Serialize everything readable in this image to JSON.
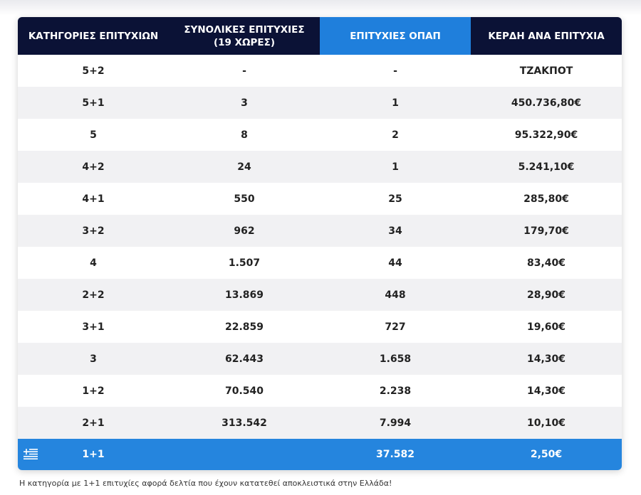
{
  "header": {
    "col1": "ΚΑΤΗΓΟΡΙΕΣ ΕΠΙΤΥΧΙΩΝ",
    "col2_line1": "ΣΥΝΟΛΙΚΕΣ ΕΠΙΤΥΧΙΕΣ",
    "col2_line2": "(19 ΧΩΡΕΣ)",
    "col3": "ΕΠΙΤΥΧΙΕΣ ΟΠΑΠ",
    "col4": "ΚΕΡΔΗ ΑΝΑ ΕΠΙΤΥΧΙΑ"
  },
  "rows": [
    {
      "category": "5+2",
      "total": "-",
      "opap": "-",
      "prize": "ΤΖΑΚΠΟΤ"
    },
    {
      "category": "5+1",
      "total": "3",
      "opap": "1",
      "prize": "450.736,80€"
    },
    {
      "category": "5",
      "total": "8",
      "opap": "2",
      "prize": "95.322,90€"
    },
    {
      "category": "4+2",
      "total": "24",
      "opap": "1",
      "prize": "5.241,10€"
    },
    {
      "category": "4+1",
      "total": "550",
      "opap": "25",
      "prize": "285,80€"
    },
    {
      "category": "3+2",
      "total": "962",
      "opap": "34",
      "prize": "179,70€"
    },
    {
      "category": "4",
      "total": "1.507",
      "opap": "44",
      "prize": "83,40€"
    },
    {
      "category": "2+2",
      "total": "13.869",
      "opap": "448",
      "prize": "28,90€"
    },
    {
      "category": "3+1",
      "total": "22.859",
      "opap": "727",
      "prize": "19,60€"
    },
    {
      "category": "3",
      "total": "62.443",
      "opap": "1.658",
      "prize": "14,30€"
    },
    {
      "category": "1+2",
      "total": "70.540",
      "opap": "2.238",
      "prize": "14,30€"
    },
    {
      "category": "2+1",
      "total": "313.542",
      "opap": "7.994",
      "prize": "10,10€"
    }
  ],
  "footer_row": {
    "flag_icon": "greek-flag-icon",
    "category": "1+1",
    "total": "",
    "opap": "37.582",
    "prize": "2,50€"
  },
  "note": "Η κατηγορία με 1+1 επιτυχίες αφορά δελτία που έχουν κατατεθεί αποκλειστικά στην Ελλάδα!",
  "colors": {
    "header_bg": "#0b1236",
    "header_highlight": "#1f7fdc",
    "footer_bg": "#2585de"
  }
}
